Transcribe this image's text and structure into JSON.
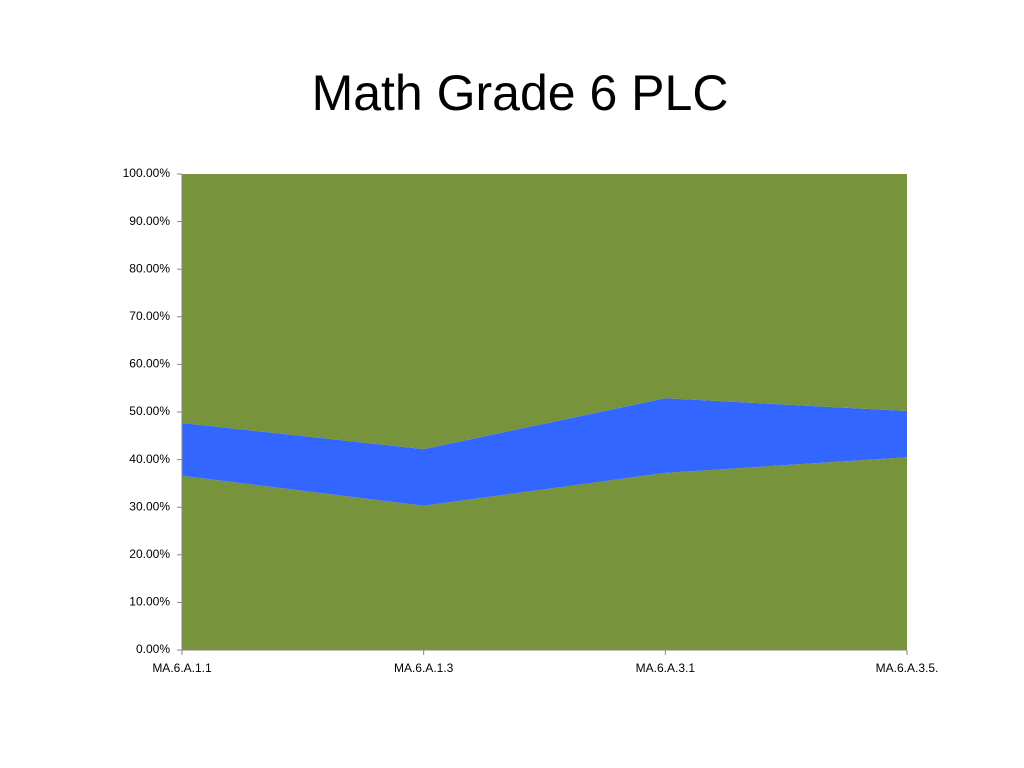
{
  "chart_data": {
    "type": "stacked_area",
    "title": "Math Grade 6 PLC",
    "categories": [
      "MA.6.A.1.1",
      "MA.6.A.1.3",
      "MA.6.A.3.1",
      "MA.6.A.3.5."
    ],
    "series": [
      {
        "color": "#77933c",
        "values": [
          36.6,
          30.3,
          37.2,
          40.5
        ]
      },
      {
        "color": "#3366ff",
        "values": [
          11.1,
          11.9,
          15.7,
          9.7
        ]
      },
      {
        "color": "#77933c",
        "values": [
          52.3,
          57.8,
          47.1,
          49.8
        ]
      }
    ],
    "ylim": [
      0,
      100
    ],
    "yticks": [
      {
        "value": 0,
        "label": "0.00%"
      },
      {
        "value": 10,
        "label": "10.00%"
      },
      {
        "value": 20,
        "label": "20.00%"
      },
      {
        "value": 30,
        "label": "30.00%"
      },
      {
        "value": 40,
        "label": "40.00%"
      },
      {
        "value": 50,
        "label": "50.00%"
      },
      {
        "value": 60,
        "label": "60.00%"
      },
      {
        "value": 70,
        "label": "70.00%"
      },
      {
        "value": 80,
        "label": "80.00%"
      },
      {
        "value": 90,
        "label": "90.00%"
      },
      {
        "value": 100,
        "label": "100.00%"
      }
    ],
    "grid": false
  }
}
